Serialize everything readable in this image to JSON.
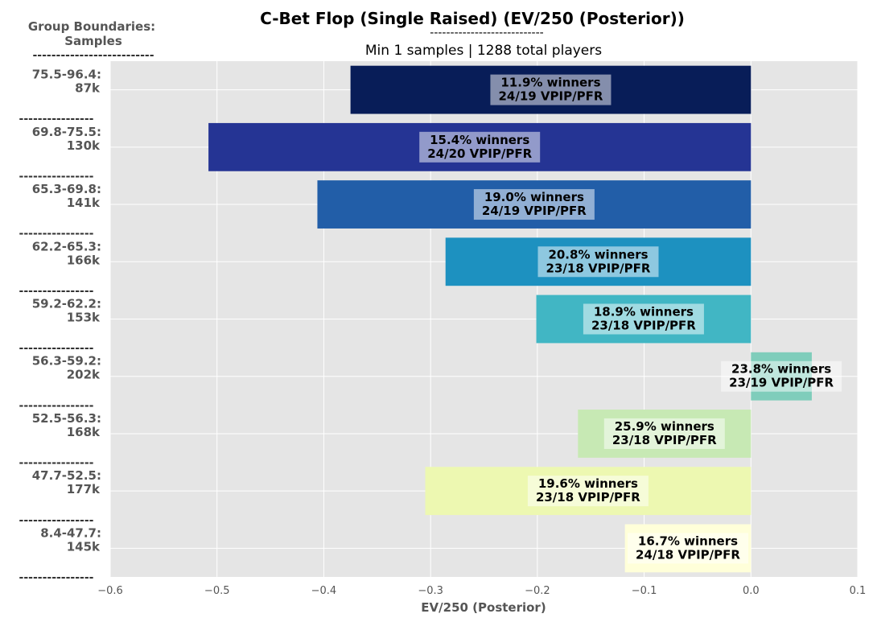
{
  "chart_data": {
    "type": "bar",
    "orientation": "horizontal",
    "title": "C-Bet Flop (Single Raised) (EV/250 (Posterior))",
    "title_underline": "----------------------------",
    "subtitle": "Min 1 samples | 1288 total players",
    "group_header": [
      "Group Boundaries:",
      "Samples"
    ],
    "group_header_underline": "--------------------------",
    "separator": "----------------",
    "xlabel": "EV/250 (Posterior)",
    "xlim": [
      -0.6,
      0.1
    ],
    "xticks": [
      "−0.6",
      "−0.5",
      "−0.4",
      "−0.3",
      "−0.2",
      "−0.1",
      "0.0",
      "0.1"
    ],
    "xtick_values": [
      -0.6,
      -0.5,
      -0.4,
      -0.3,
      -0.2,
      -0.1,
      0.0,
      0.1
    ],
    "grid": true,
    "background": "#e5e5e5",
    "bars": [
      {
        "range": "75.5-96.4:",
        "samples": "87k",
        "value": -0.375,
        "winners": "11.9% winners",
        "vpip": "24/19 VPIP/PFR",
        "color": "#081d58"
      },
      {
        "range": "69.8-75.5:",
        "samples": "130k",
        "value": -0.508,
        "winners": "15.4% winners",
        "vpip": "24/20 VPIP/PFR",
        "color": "#253494"
      },
      {
        "range": "65.3-69.8:",
        "samples": "141k",
        "value": -0.406,
        "winners": "19.0% winners",
        "vpip": "24/19 VPIP/PFR",
        "color": "#225ea8"
      },
      {
        "range": "62.2-65.3:",
        "samples": "166k",
        "value": -0.286,
        "winners": "20.8% winners",
        "vpip": "23/18 VPIP/PFR",
        "color": "#1d91c0"
      },
      {
        "range": "59.2-62.2:",
        "samples": "153k",
        "value": -0.201,
        "winners": "18.9% winners",
        "vpip": "23/18 VPIP/PFR",
        "color": "#41b6c4"
      },
      {
        "range": "56.3-59.2:",
        "samples": "202k",
        "value": 0.057,
        "winners": "23.8% winners",
        "vpip": "23/19 VPIP/PFR",
        "color": "#7fcdbb"
      },
      {
        "range": "52.5-56.3:",
        "samples": "168k",
        "value": -0.162,
        "winners": "25.9% winners",
        "vpip": "23/18 VPIP/PFR",
        "color": "#c7e9b4"
      },
      {
        "range": "47.7-52.5:",
        "samples": "177k",
        "value": -0.305,
        "winners": "19.6% winners",
        "vpip": "23/18 VPIP/PFR",
        "color": "#edf8b1"
      },
      {
        "range": "8.4-47.7:",
        "samples": "145k",
        "value": -0.118,
        "winners": "16.7% winners",
        "vpip": "24/18 VPIP/PFR",
        "color": "#ffffd9"
      }
    ]
  }
}
